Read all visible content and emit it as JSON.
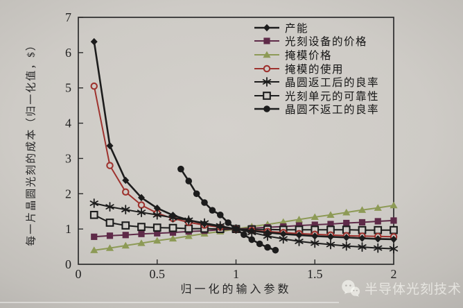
{
  "figure": {
    "y_axis_title": "每一片晶圆光刻的成本（归一化值，$）",
    "x_axis_title": "归一化的输入参数",
    "y_tick_labels": [
      "0",
      "1",
      "2",
      "3",
      "4",
      "5",
      "6",
      "7"
    ],
    "x_tick_labels": [
      "0",
      "0.5",
      "1",
      "1.5",
      "2"
    ],
    "ink_color": "#2b2b2b",
    "paper_color": "#cecbc6",
    "watermark": {
      "icon": "wechat-icon",
      "text": "半导体光刻技术"
    }
  },
  "chart_data": {
    "type": "line",
    "title": "",
    "xlabel": "归一化的输入参数",
    "ylabel": "每一片晶圆光刻的成本（归一化值，$）",
    "xlim": [
      0,
      2
    ],
    "ylim": [
      0,
      7
    ],
    "x_ticks": [
      0,
      0.5,
      1,
      1.5,
      2
    ],
    "y_ticks": [
      0,
      1,
      2,
      3,
      4,
      5,
      6,
      7
    ],
    "grid": false,
    "legend_position": "top-right-inside",
    "series": [
      {
        "id": "throughput",
        "name": "产能",
        "marker": "diamond-filled",
        "color": "#1c1c1c",
        "line_width": 2.6,
        "points": [
          [
            0.1,
            6.31
          ],
          [
            0.2,
            3.36
          ],
          [
            0.3,
            2.38
          ],
          [
            0.4,
            1.89
          ],
          [
            0.5,
            1.59
          ],
          [
            0.6,
            1.39
          ],
          [
            0.7,
            1.25
          ],
          [
            0.8,
            1.15
          ],
          [
            0.9,
            1.07
          ],
          [
            1.0,
            1.0
          ],
          [
            1.1,
            0.95
          ],
          [
            1.2,
            0.9
          ],
          [
            1.3,
            0.86
          ],
          [
            1.4,
            0.83
          ],
          [
            1.5,
            0.8
          ],
          [
            1.6,
            0.78
          ],
          [
            1.7,
            0.76
          ],
          [
            1.8,
            0.74
          ],
          [
            1.9,
            0.72
          ],
          [
            2.0,
            0.71
          ]
        ]
      },
      {
        "id": "litho-equipment-price",
        "name": "光刻设备的价格",
        "marker": "square-filled",
        "color": "#5e2a48",
        "line_width": 2.0,
        "points": [
          [
            0.1,
            0.78
          ],
          [
            0.2,
            0.81
          ],
          [
            0.3,
            0.83
          ],
          [
            0.4,
            0.86
          ],
          [
            0.5,
            0.88
          ],
          [
            0.6,
            0.9
          ],
          [
            0.7,
            0.93
          ],
          [
            0.8,
            0.95
          ],
          [
            0.9,
            0.98
          ],
          [
            1.0,
            1.0
          ],
          [
            1.1,
            1.02
          ],
          [
            1.2,
            1.05
          ],
          [
            1.3,
            1.07
          ],
          [
            1.4,
            1.1
          ],
          [
            1.5,
            1.12
          ],
          [
            1.6,
            1.14
          ],
          [
            1.7,
            1.17
          ],
          [
            1.8,
            1.19
          ],
          [
            1.9,
            1.22
          ],
          [
            2.0,
            1.24
          ]
        ]
      },
      {
        "id": "mask-price",
        "name": "掩模价格",
        "marker": "triangle-filled",
        "color": "#8d9a56",
        "line_width": 2.0,
        "points": [
          [
            0.1,
            0.4
          ],
          [
            0.2,
            0.46
          ],
          [
            0.3,
            0.53
          ],
          [
            0.4,
            0.6
          ],
          [
            0.5,
            0.67
          ],
          [
            0.6,
            0.73
          ],
          [
            0.7,
            0.8
          ],
          [
            0.8,
            0.87
          ],
          [
            0.9,
            0.93
          ],
          [
            1.0,
            1.0
          ],
          [
            1.1,
            1.07
          ],
          [
            1.2,
            1.13
          ],
          [
            1.3,
            1.2
          ],
          [
            1.4,
            1.27
          ],
          [
            1.5,
            1.34
          ],
          [
            1.6,
            1.4
          ],
          [
            1.7,
            1.47
          ],
          [
            1.8,
            1.54
          ],
          [
            1.9,
            1.6
          ],
          [
            2.0,
            1.67
          ]
        ]
      },
      {
        "id": "mask-usage",
        "name": "掩模的使用",
        "marker": "circle-open",
        "color": "#9e322e",
        "line_width": 2.0,
        "points": [
          [
            0.1,
            5.05
          ],
          [
            0.2,
            2.8
          ],
          [
            0.3,
            2.05
          ],
          [
            0.4,
            1.68
          ],
          [
            0.5,
            1.45
          ],
          [
            0.6,
            1.3
          ],
          [
            0.7,
            1.19
          ],
          [
            0.8,
            1.11
          ],
          [
            0.9,
            1.05
          ],
          [
            1.0,
            1.0
          ],
          [
            1.1,
            0.96
          ],
          [
            1.2,
            0.93
          ],
          [
            1.3,
            0.9
          ],
          [
            1.4,
            0.87
          ],
          [
            1.5,
            0.85
          ],
          [
            1.6,
            0.83
          ],
          [
            1.7,
            0.81
          ],
          [
            1.8,
            0.8
          ],
          [
            1.9,
            0.79
          ],
          [
            2.0,
            0.78
          ]
        ]
      },
      {
        "id": "yield-after-rework",
        "name": "晶圆返工后的良率",
        "marker": "asterisk",
        "color": "#1c1c1c",
        "line_width": 2.0,
        "points": [
          [
            0.1,
            1.73
          ],
          [
            0.2,
            1.63
          ],
          [
            0.3,
            1.55
          ],
          [
            0.4,
            1.47
          ],
          [
            0.5,
            1.4
          ],
          [
            0.6,
            1.32
          ],
          [
            0.7,
            1.25
          ],
          [
            0.8,
            1.17
          ],
          [
            0.9,
            1.09
          ],
          [
            1.0,
            1.0
          ],
          [
            1.1,
            0.9
          ],
          [
            1.2,
            0.8
          ],
          [
            1.3,
            0.72
          ],
          [
            1.4,
            0.65
          ],
          [
            1.5,
            0.6
          ],
          [
            1.6,
            0.56
          ],
          [
            1.7,
            0.52
          ],
          [
            1.8,
            0.49
          ],
          [
            1.9,
            0.46
          ],
          [
            2.0,
            0.44
          ]
        ]
      },
      {
        "id": "litho-cell-reliability",
        "name": "光刻单元的可靠性",
        "marker": "square-open",
        "color": "#1c1c1c",
        "line_width": 2.0,
        "points": [
          [
            0.1,
            1.4
          ],
          [
            0.2,
            1.18
          ],
          [
            0.3,
            1.1
          ],
          [
            0.4,
            1.06
          ],
          [
            0.5,
            1.04
          ],
          [
            0.6,
            1.03
          ],
          [
            0.7,
            1.01
          ],
          [
            0.8,
            1.01
          ],
          [
            0.9,
            1.0
          ],
          [
            1.0,
            1.0
          ],
          [
            1.1,
            0.99
          ],
          [
            1.2,
            0.99
          ],
          [
            1.3,
            0.98
          ],
          [
            1.4,
            0.98
          ],
          [
            1.5,
            0.98
          ],
          [
            1.6,
            0.98
          ],
          [
            1.7,
            0.98
          ],
          [
            1.8,
            0.97
          ],
          [
            1.9,
            0.97
          ],
          [
            2.0,
            0.97
          ]
        ]
      },
      {
        "id": "yield-without-rework",
        "name": "晶圆不返工的良率",
        "marker": "circle-filled",
        "color": "#1c1c1c",
        "line_width": 2.6,
        "points": [
          [
            0.65,
            2.7
          ],
          [
            0.7,
            2.36
          ],
          [
            0.75,
            2.0
          ],
          [
            0.8,
            1.75
          ],
          [
            0.85,
            1.53
          ],
          [
            0.9,
            1.4
          ],
          [
            0.95,
            1.18
          ],
          [
            1.0,
            1.0
          ],
          [
            1.05,
            0.84
          ],
          [
            1.1,
            0.7
          ],
          [
            1.15,
            0.58
          ],
          [
            1.2,
            0.48
          ],
          [
            1.25,
            0.4
          ]
        ]
      }
    ]
  }
}
